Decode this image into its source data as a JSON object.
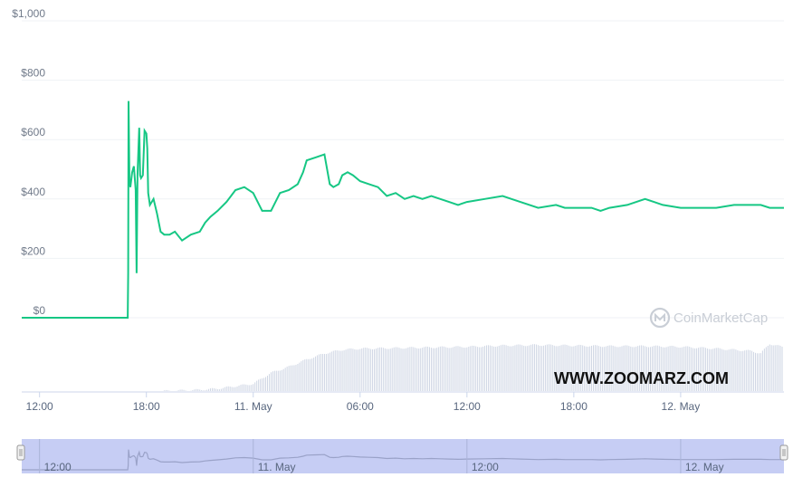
{
  "watermark": "CoinMarketCap",
  "site_label": "WWW.ZOOMARZ.COM",
  "colors": {
    "line": "#16c784",
    "grid": "#eff2f5",
    "volume": "#cfd6e4",
    "navigator_fill": "#c6cdf4",
    "navigator_line": "#9aa2c8",
    "axis_text": "#707a8a"
  },
  "chart_data": {
    "type": "line",
    "y_ticks": [
      "$1,000",
      "$800",
      "$600",
      "$400",
      "$200",
      "$0"
    ],
    "y_tick_values": [
      1000,
      800,
      600,
      400,
      200,
      0
    ],
    "ylim": [
      0,
      1000
    ],
    "x_ticks": [
      "12:00",
      "18:00",
      "11. May",
      "06:00",
      "12:00",
      "18:00",
      "12. May"
    ],
    "x_tick_times_h": [
      0,
      6,
      12,
      18,
      24,
      30,
      36
    ],
    "xlim_h": [
      -1,
      41.8
    ],
    "navigator_ticks": [
      "12:00",
      "11. May",
      "12:00",
      "12. May"
    ],
    "navigator_tick_times_h": [
      0,
      12,
      24,
      36
    ],
    "series": [
      {
        "x_h": [
          -1,
          4.95,
          4.98,
          5.0,
          5.05,
          5.1,
          5.2,
          5.3,
          5.4,
          5.45,
          5.5,
          5.6,
          5.65,
          5.7,
          5.8,
          5.9,
          6.0,
          6.05,
          6.1,
          6.2,
          6.4,
          6.6,
          6.8,
          7.0,
          7.3,
          7.6,
          8.0,
          8.5,
          9.0,
          9.3,
          9.6,
          10.0,
          10.5,
          11.0,
          11.5,
          12.0,
          12.5,
          13.0,
          13.5,
          14.0,
          14.5,
          14.8,
          15.0,
          15.5,
          16.0,
          16.3,
          16.5,
          16.8,
          17.0,
          17.3,
          17.6,
          18.0,
          18.5,
          19.0,
          19.5,
          20.0,
          20.5,
          21.0,
          21.5,
          22.0,
          22.5,
          23.0,
          23.5,
          24.0,
          25.0,
          26.0,
          26.5,
          27.0,
          28.0,
          29.0,
          29.5,
          30.0,
          31.0,
          31.5,
          32.0,
          33.0,
          34.0,
          34.5,
          35.0,
          36.0,
          37.0,
          38.0,
          39.0,
          40.0,
          40.5,
          41.0,
          41.8
        ],
        "y": [
          0,
          0,
          150,
          730,
          460,
          440,
          490,
          510,
          430,
          150,
          480,
          640,
          480,
          470,
          480,
          630,
          620,
          570,
          420,
          380,
          400,
          350,
          290,
          280,
          280,
          290,
          260,
          280,
          290,
          320,
          340,
          360,
          390,
          430,
          440,
          420,
          360,
          360,
          420,
          430,
          450,
          490,
          530,
          540,
          550,
          450,
          440,
          450,
          480,
          490,
          480,
          460,
          450,
          440,
          410,
          420,
          400,
          410,
          400,
          410,
          400,
          390,
          380,
          390,
          400,
          410,
          400,
          390,
          370,
          380,
          370,
          370,
          370,
          360,
          370,
          380,
          400,
          390,
          380,
          370,
          370,
          370,
          380,
          380,
          380,
          370,
          370
        ]
      }
    ],
    "volume": {
      "x_h": [
        7,
        9,
        10,
        11,
        12,
        13,
        14,
        15,
        16,
        17,
        18,
        20,
        22,
        24,
        26,
        28,
        30,
        32,
        34,
        36,
        38,
        40,
        40.5,
        41,
        41.8
      ],
      "values": [
        0,
        2,
        4,
        8,
        12,
        30,
        40,
        52,
        62,
        68,
        70,
        71,
        72,
        73,
        75,
        76,
        75,
        74,
        74,
        73,
        70,
        66,
        62,
        78,
        72
      ]
    }
  }
}
